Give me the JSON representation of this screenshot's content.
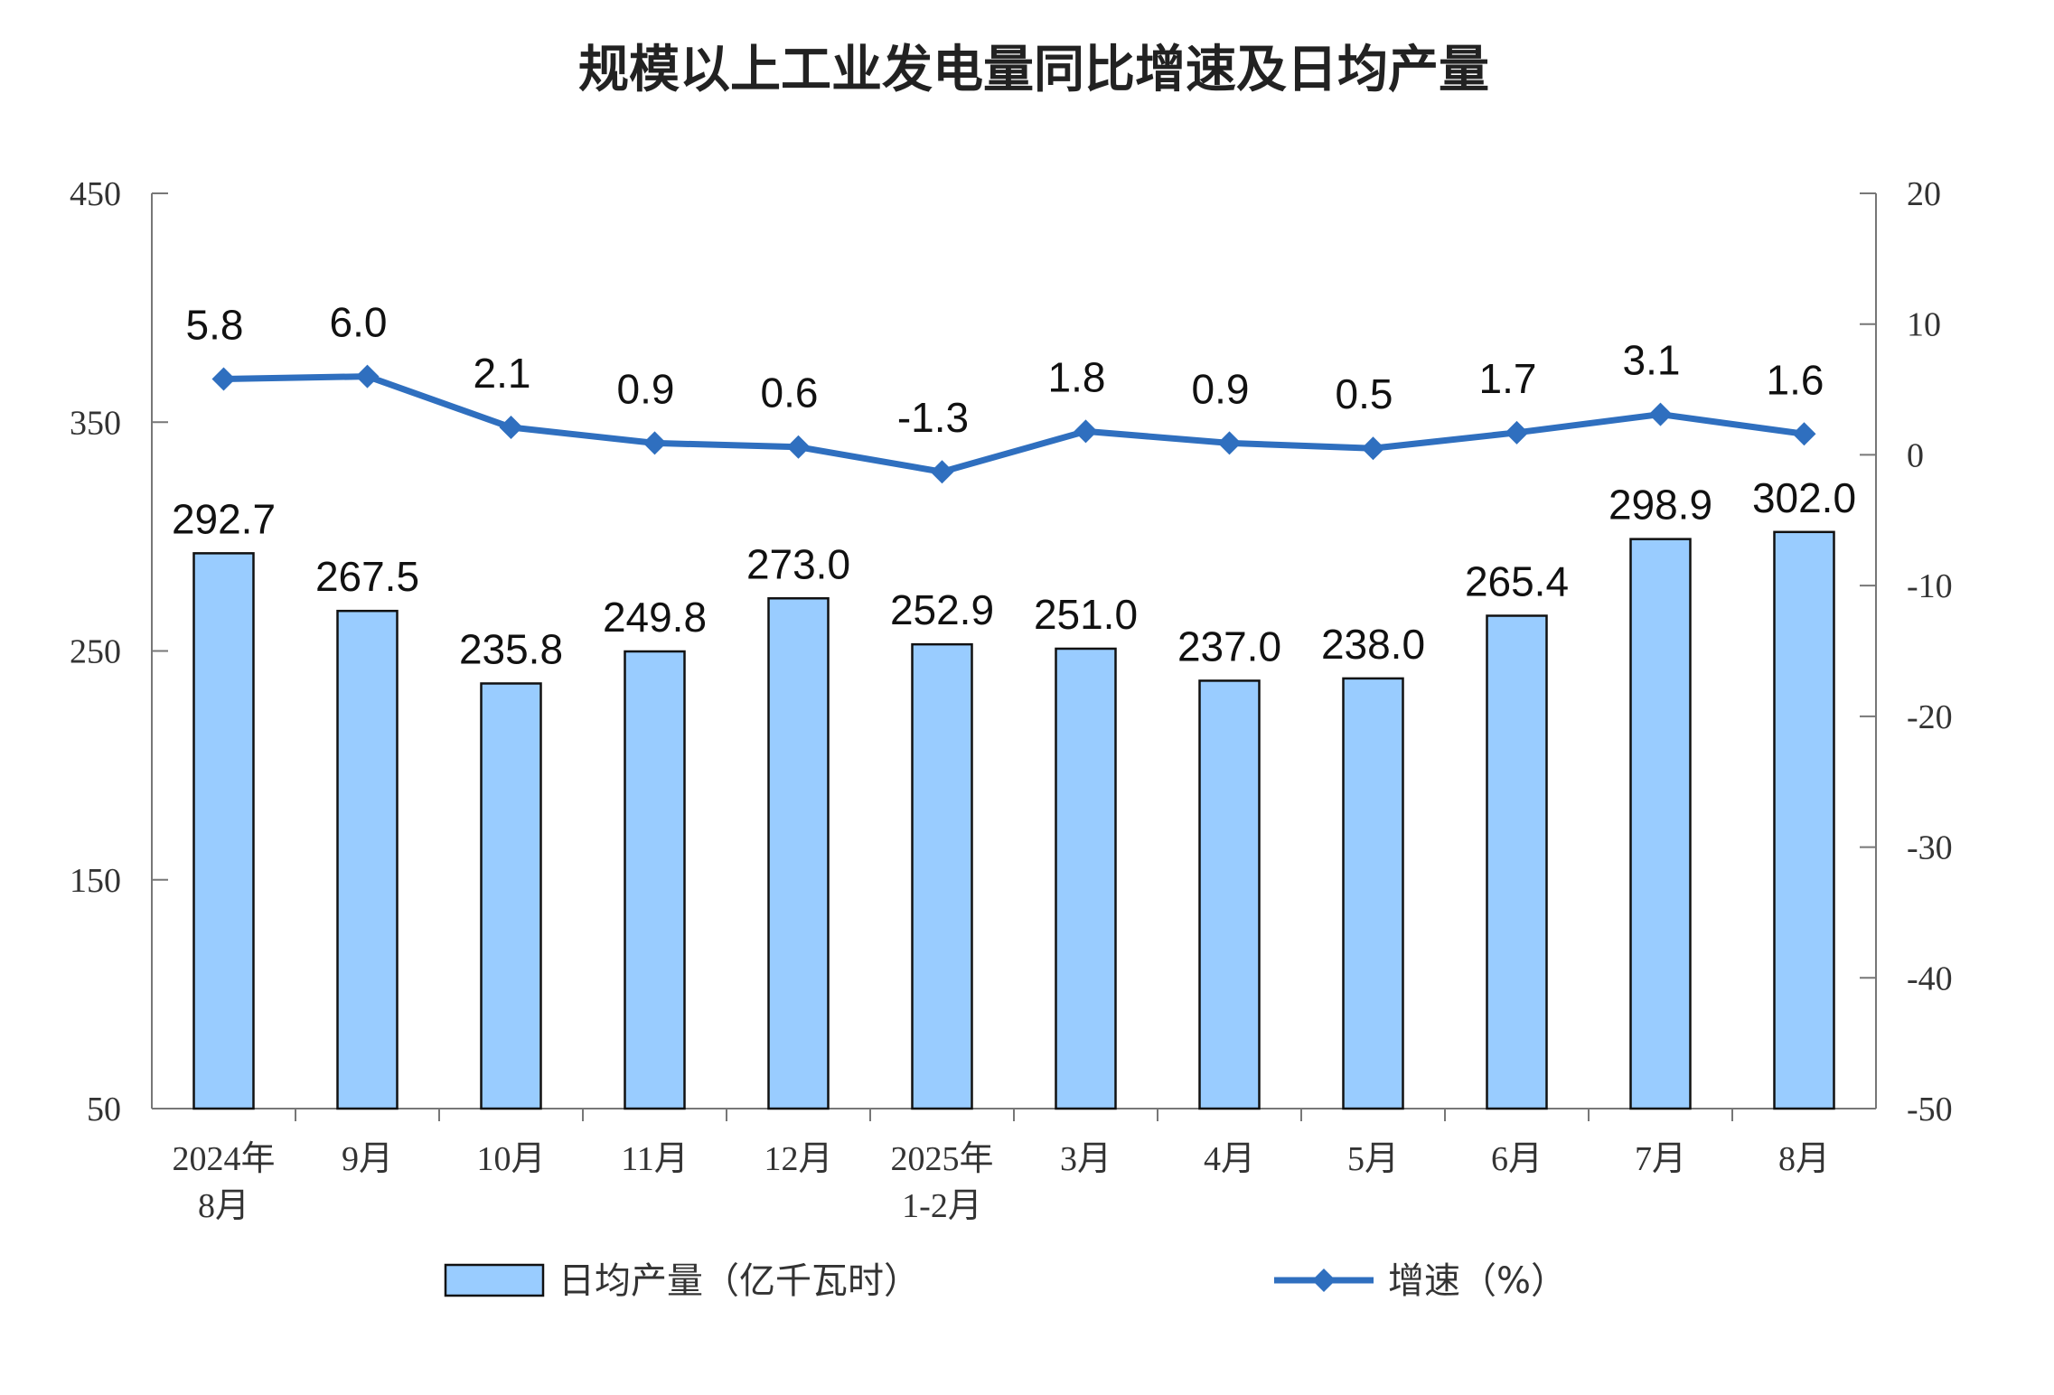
{
  "chart_data": {
    "type": "bar+line",
    "title": "规模以上工业发电量同比增速及日均产量",
    "categories": [
      [
        "2024年",
        "8月"
      ],
      [
        "9月"
      ],
      [
        "10月"
      ],
      [
        "11月"
      ],
      [
        "12月"
      ],
      [
        "2025年",
        "1-2月"
      ],
      [
        "3月"
      ],
      [
        "4月"
      ],
      [
        "5月"
      ],
      [
        "6月"
      ],
      [
        "7月"
      ],
      [
        "8月"
      ]
    ],
    "series": [
      {
        "name": "日均产量（亿千瓦时）",
        "type": "bar",
        "axis": "left",
        "color": "#99CCFF",
        "values": [
          292.7,
          267.5,
          235.8,
          249.8,
          273.0,
          252.9,
          251.0,
          237.0,
          238.0,
          265.4,
          298.9,
          302.0
        ],
        "labels": [
          "292.7",
          "267.5",
          "235.8",
          "249.8",
          "273.0",
          "252.9",
          "251.0",
          "237.0",
          "238.0",
          "265.4",
          "298.9",
          "302.0"
        ]
      },
      {
        "name": "增速（%）",
        "type": "line",
        "axis": "right",
        "color": "#2F6FBF",
        "marker": "diamond",
        "values": [
          5.8,
          6.0,
          2.1,
          0.9,
          0.6,
          -1.3,
          1.8,
          0.9,
          0.5,
          1.7,
          3.1,
          1.6
        ],
        "labels": [
          "5.8",
          "6.0",
          "2.1",
          "0.9",
          "0.6",
          "-1.3",
          "1.8",
          "0.9",
          "0.5",
          "1.7",
          "3.1",
          "1.6"
        ]
      }
    ],
    "left_axis": {
      "ylim": [
        50,
        450
      ],
      "ticks": [
        "50",
        "150",
        "250",
        "350",
        "450"
      ]
    },
    "right_axis": {
      "ylim": [
        -50,
        20
      ],
      "ticks": [
        "-50",
        "-40",
        "-30",
        "-20",
        "-10",
        "0",
        "10",
        "20"
      ]
    },
    "grid": false,
    "legend_placement": "bottom"
  }
}
